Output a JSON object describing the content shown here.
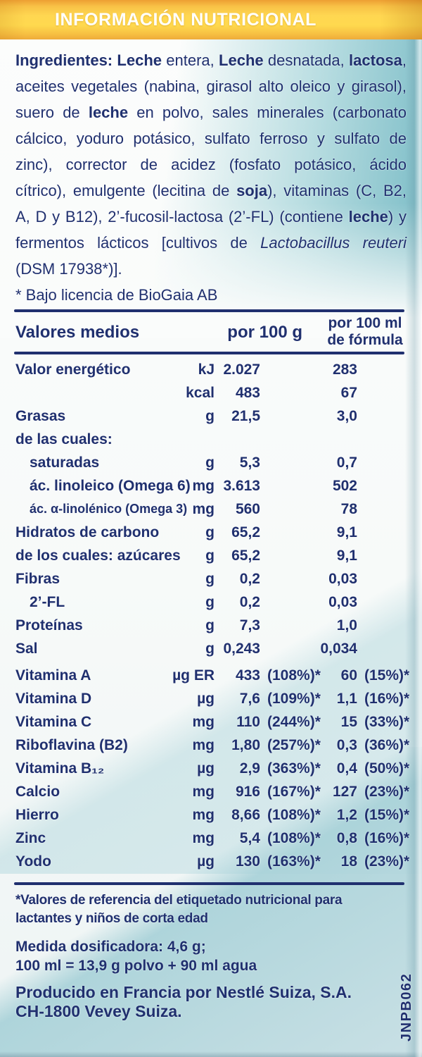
{
  "header": {
    "title": "INFORMACIÓN NUTRICIONAL"
  },
  "ingredients": {
    "segments": [
      {
        "text": "Ingredientes: ",
        "bold": true
      },
      {
        "text": "Leche",
        "bold": true
      },
      {
        "text": " entera, "
      },
      {
        "text": "Leche",
        "bold": true
      },
      {
        "text": " desnatada, "
      },
      {
        "text": "lactosa",
        "bold": true
      },
      {
        "text": ", aceites vegetales (nabina, girasol alto oleico y girasol), suero de "
      },
      {
        "text": "leche",
        "bold": true
      },
      {
        "text": " en polvo, sales minerales (carbonato cálcico, yoduro potásico, sulfato ferroso y sulfato de zinc), corrector de acidez (fosfato potásico, ácido cítrico), emulgente (lecitina de "
      },
      {
        "text": "soja",
        "bold": true
      },
      {
        "text": "), vitaminas (C, B2, A, D y B12), 2’-fucosil-lactosa (2’-FL) (contiene "
      },
      {
        "text": "leche",
        "bold": true
      },
      {
        "text": ") y fermentos lácticos [cultivos de "
      },
      {
        "text": "Lactobacillus reuteri",
        "italic": true
      },
      {
        "text": " (DSM 17938*)]."
      }
    ],
    "license_note": "* Bajo licencia de BioGaia AB"
  },
  "table": {
    "header": {
      "col_label": "Valores medios",
      "col_per100g": "por 100 g",
      "col_per100ml_line1": "por 100 ml",
      "col_per100ml_line2": "de fórmula"
    },
    "rows": [
      {
        "label": "Valor energético",
        "unit": "kJ",
        "per100g": "2.027",
        "per100g_pct": "",
        "per100ml": "283",
        "per100ml_pct": ""
      },
      {
        "label": "",
        "unit": "kcal",
        "per100g": "483",
        "per100g_pct": "",
        "per100ml": "67",
        "per100ml_pct": ""
      },
      {
        "label": "Grasas",
        "unit": "g",
        "per100g": "21,5",
        "per100g_pct": "",
        "per100ml": "3,0",
        "per100ml_pct": ""
      },
      {
        "label": "de las cuales:",
        "unit": "",
        "per100g": "",
        "per100g_pct": "",
        "per100ml": "",
        "per100ml_pct": ""
      },
      {
        "label": "saturadas",
        "indent": true,
        "unit": "g",
        "per100g": "5,3",
        "per100g_pct": "",
        "per100ml": "0,7",
        "per100ml_pct": ""
      },
      {
        "label": "ác. linoleico (Omega 6)",
        "indent": true,
        "unit": "mg",
        "per100g": "3.613",
        "per100g_pct": "",
        "per100ml": "502",
        "per100ml_pct": ""
      },
      {
        "label": "ác. α-linolénico (Omega 3)",
        "indent": true,
        "unit": "mg",
        "per100g": "560",
        "per100g_pct": "",
        "per100ml": "78",
        "per100ml_pct": ""
      },
      {
        "label": "Hidratos de carbono",
        "unit": "g",
        "per100g": "65,2",
        "per100g_pct": "",
        "per100ml": "9,1",
        "per100ml_pct": ""
      },
      {
        "label": "de los cuales: azúcares",
        "unit": "g",
        "per100g": "65,2",
        "per100g_pct": "",
        "per100ml": "9,1",
        "per100ml_pct": ""
      },
      {
        "label": "Fibras",
        "unit": "g",
        "per100g": "0,2",
        "per100g_pct": "",
        "per100ml": "0,03",
        "per100ml_pct": ""
      },
      {
        "label": "2’-FL",
        "indent": true,
        "unit": "g",
        "per100g": "0,2",
        "per100g_pct": "",
        "per100ml": "0,03",
        "per100ml_pct": ""
      },
      {
        "label": "Proteínas",
        "unit": "g",
        "per100g": "7,3",
        "per100g_pct": "",
        "per100ml": "1,0",
        "per100ml_pct": ""
      },
      {
        "label": "Sal",
        "unit": "g",
        "per100g": "0,243",
        "per100g_pct": "",
        "per100ml": "0,034",
        "per100ml_pct": ""
      },
      {
        "label": "Vitamina A",
        "gap_before": true,
        "unit": "µg ER",
        "per100g": "433",
        "per100g_pct": "(108%)*",
        "per100ml": "60",
        "per100ml_pct": "(15%)*"
      },
      {
        "label": "Vitamina D",
        "unit": "µg",
        "per100g": "7,6",
        "per100g_pct": "(109%)*",
        "per100ml": "1,1",
        "per100ml_pct": "(16%)*"
      },
      {
        "label": "Vitamina C",
        "unit": "mg",
        "per100g": "110",
        "per100g_pct": "(244%)*",
        "per100ml": "15",
        "per100ml_pct": "(33%)*"
      },
      {
        "label": "Riboflavina (B2)",
        "unit": "mg",
        "per100g": "1,80",
        "per100g_pct": "(257%)*",
        "per100ml": "0,3",
        "per100ml_pct": "(36%)*"
      },
      {
        "label": "Vitamina B₁₂",
        "unit": "µg",
        "per100g": "2,9",
        "per100g_pct": "(363%)*",
        "per100ml": "0,4",
        "per100ml_pct": "(50%)*"
      },
      {
        "label": "Calcio",
        "unit": "mg",
        "per100g": "916",
        "per100g_pct": "(167%)*",
        "per100ml": "127",
        "per100ml_pct": "(23%)*"
      },
      {
        "label": "Hierro",
        "unit": "mg",
        "per100g": "8,66",
        "per100g_pct": "(108%)*",
        "per100ml": "1,2",
        "per100ml_pct": "(15%)*"
      },
      {
        "label": "Zinc",
        "unit": "mg",
        "per100g": "5,4",
        "per100g_pct": "(108%)*",
        "per100ml": "0,8",
        "per100ml_pct": "(16%)*"
      },
      {
        "label": "Yodo",
        "unit": "µg",
        "per100g": "130",
        "per100g_pct": "(163%)*",
        "per100ml": "18",
        "per100ml_pct": "(23%)*"
      }
    ]
  },
  "footnotes": {
    "reference_note": "*Valores de referencia del etiquetado nutricional para lactantes y niños de corta edad",
    "scoop_note": "Medida dosificadora: 4,6 g;",
    "mix_note": "100 ml = 13,9 g polvo + 90 ml agua",
    "producer_line1": "Producido en Francia por Nestlé Suiza, S.A.",
    "producer_line2": "CH-1800 Vevey Suiza.",
    "side_code": "JNPB062"
  },
  "colors": {
    "navy": "#20306f",
    "band_yellow": "#ffd751",
    "teal": "#8ec7ce",
    "title_text": "#ffffff"
  }
}
